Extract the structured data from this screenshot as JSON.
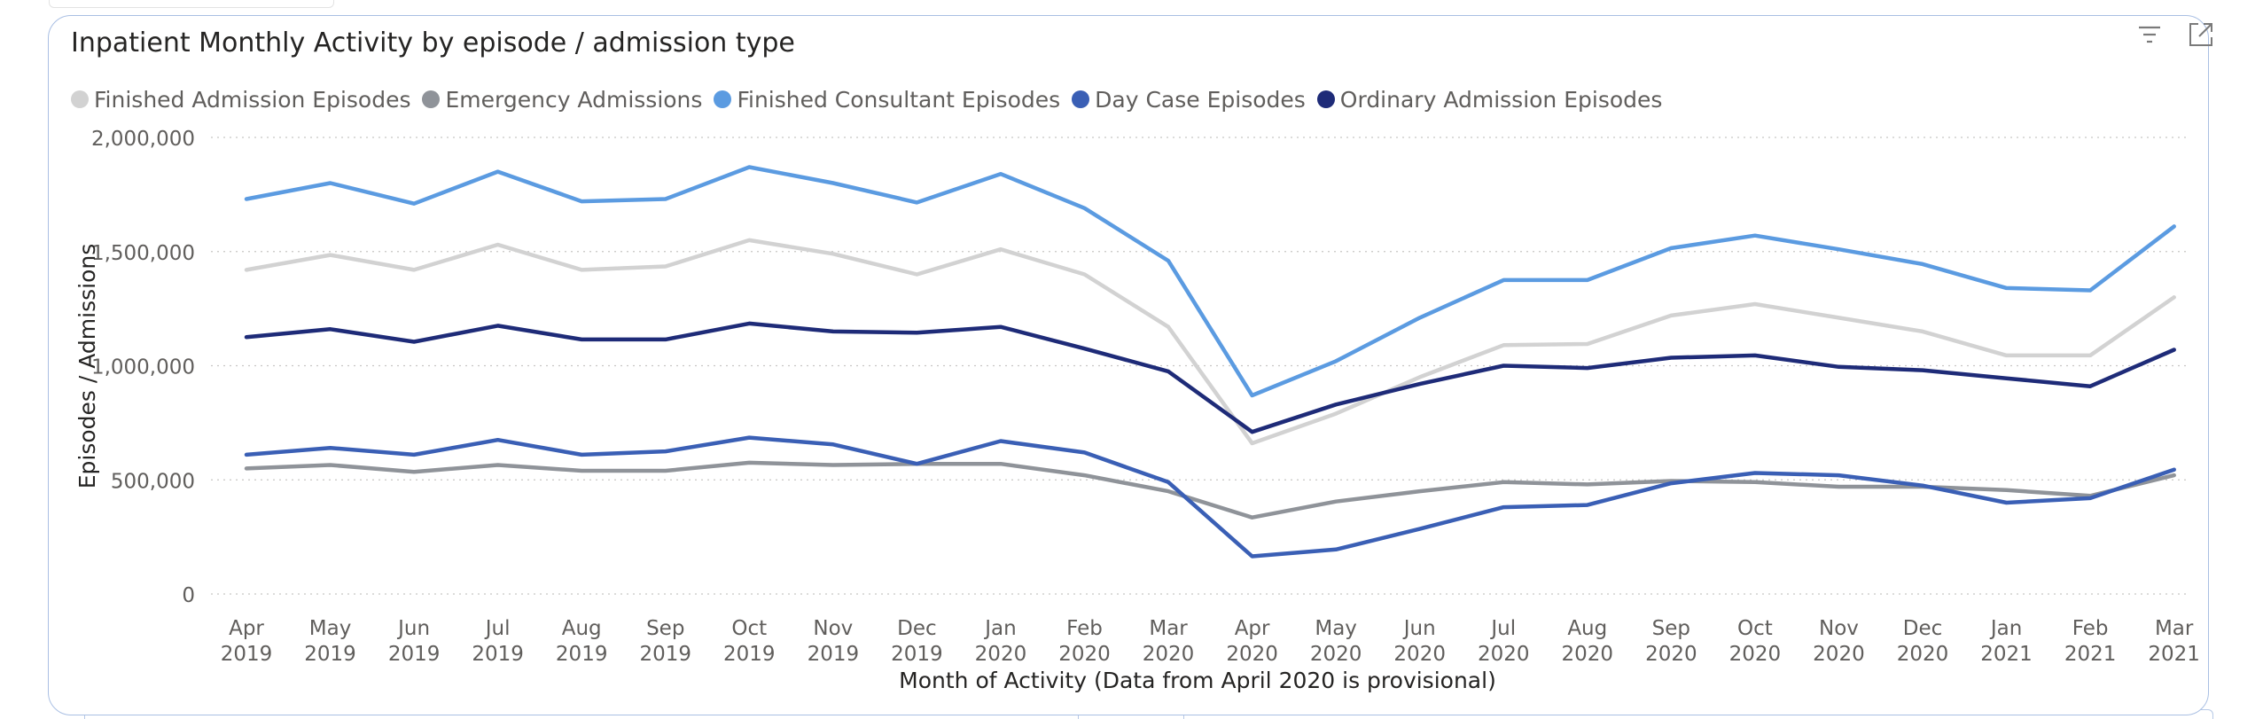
{
  "chart_data": {
    "type": "line",
    "title": "Inpatient Monthly Activity by episode / admission type",
    "xlabel": "Month of Activity (Data from April 2020 is provisional)",
    "ylabel": "Episodes / Admissions",
    "ylim": [
      0,
      2000000
    ],
    "yticks": [
      {
        "value": 0,
        "label": "0"
      },
      {
        "value": 500000,
        "label": "500,000"
      },
      {
        "value": 1000000,
        "label": "1,000,000"
      },
      {
        "value": 1500000,
        "label": "1,500,000"
      },
      {
        "value": 2000000,
        "label": "2,000,000"
      }
    ],
    "grid": true,
    "legend_position": "top-left",
    "x": [
      {
        "month": "Apr",
        "year": "2019"
      },
      {
        "month": "May",
        "year": "2019"
      },
      {
        "month": "Jun",
        "year": "2019"
      },
      {
        "month": "Jul",
        "year": "2019"
      },
      {
        "month": "Aug",
        "year": "2019"
      },
      {
        "month": "Sep",
        "year": "2019"
      },
      {
        "month": "Oct",
        "year": "2019"
      },
      {
        "month": "Nov",
        "year": "2019"
      },
      {
        "month": "Dec",
        "year": "2019"
      },
      {
        "month": "Jan",
        "year": "2020"
      },
      {
        "month": "Feb",
        "year": "2020"
      },
      {
        "month": "Mar",
        "year": "2020"
      },
      {
        "month": "Apr",
        "year": "2020"
      },
      {
        "month": "May",
        "year": "2020"
      },
      {
        "month": "Jun",
        "year": "2020"
      },
      {
        "month": "Jul",
        "year": "2020"
      },
      {
        "month": "Aug",
        "year": "2020"
      },
      {
        "month": "Sep",
        "year": "2020"
      },
      {
        "month": "Oct",
        "year": "2020"
      },
      {
        "month": "Nov",
        "year": "2020"
      },
      {
        "month": "Dec",
        "year": "2020"
      },
      {
        "month": "Jan",
        "year": "2021"
      },
      {
        "month": "Feb",
        "year": "2021"
      },
      {
        "month": "Mar",
        "year": "2021"
      }
    ],
    "series": [
      {
        "name": "Finished Admission Episodes",
        "color": "#d2d2d2",
        "values": [
          1420000,
          1485000,
          1420000,
          1530000,
          1420000,
          1435000,
          1550000,
          1490000,
          1400000,
          1510000,
          1400000,
          1170000,
          660000,
          790000,
          950000,
          1090000,
          1095000,
          1220000,
          1270000,
          1210000,
          1150000,
          1045000,
          1045000,
          1300000
        ]
      },
      {
        "name": "Emergency Admissions",
        "color": "#8f9399",
        "values": [
          550000,
          565000,
          535000,
          565000,
          540000,
          540000,
          575000,
          565000,
          570000,
          570000,
          520000,
          450000,
          335000,
          405000,
          450000,
          490000,
          480000,
          495000,
          490000,
          470000,
          470000,
          455000,
          430000,
          520000
        ]
      },
      {
        "name": "Finished Consultant Episodes",
        "color": "#5b9be1",
        "values": [
          1730000,
          1800000,
          1710000,
          1850000,
          1720000,
          1730000,
          1870000,
          1800000,
          1715000,
          1840000,
          1690000,
          1460000,
          870000,
          1020000,
          1210000,
          1375000,
          1375000,
          1515000,
          1570000,
          1510000,
          1445000,
          1340000,
          1330000,
          1610000
        ]
      },
      {
        "name": "Day Case Episodes",
        "color": "#3a5fb5",
        "values": [
          610000,
          640000,
          610000,
          675000,
          610000,
          625000,
          685000,
          655000,
          570000,
          670000,
          620000,
          490000,
          165000,
          195000,
          285000,
          380000,
          390000,
          485000,
          530000,
          520000,
          475000,
          400000,
          420000,
          545000
        ]
      },
      {
        "name": "Ordinary Admission Episodes",
        "color": "#1e2b78",
        "values": [
          1125000,
          1160000,
          1105000,
          1175000,
          1115000,
          1115000,
          1185000,
          1150000,
          1145000,
          1170000,
          1075000,
          975000,
          710000,
          830000,
          920000,
          1000000,
          990000,
          1035000,
          1045000,
          995000,
          980000,
          945000,
          910000,
          1070000
        ]
      }
    ]
  },
  "visual_header": {
    "icons": [
      "filter-icon",
      "focus-mode-icon"
    ]
  }
}
